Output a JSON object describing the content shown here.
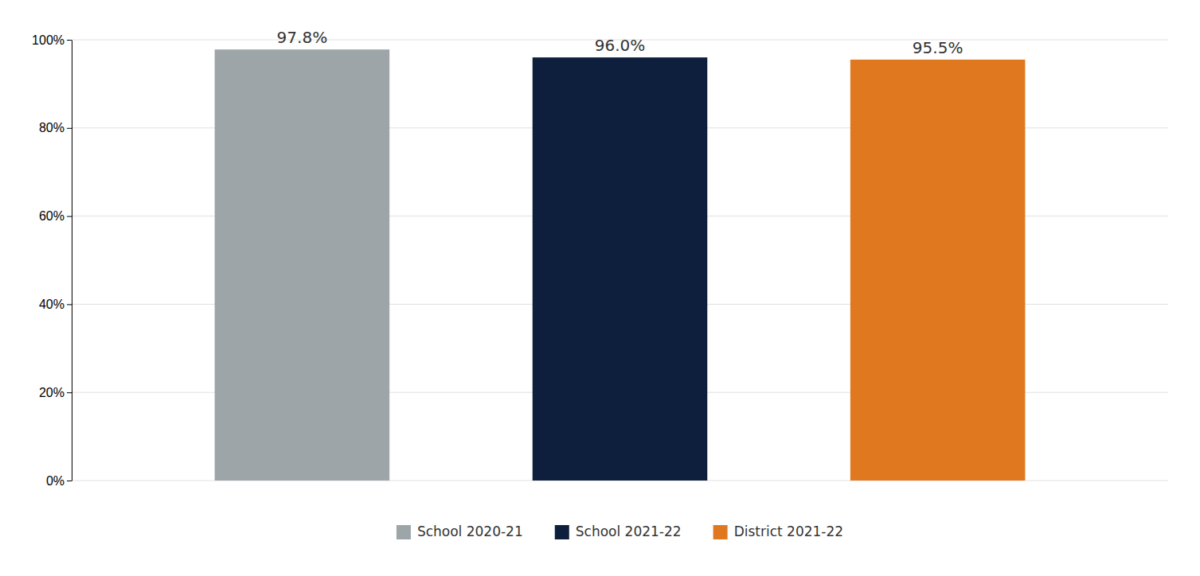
{
  "chart_data": {
    "type": "bar",
    "categories": [
      "School 2020-21",
      "School 2021-22",
      "District 2021-22"
    ],
    "values": [
      97.8,
      96.0,
      95.5
    ],
    "value_labels": [
      "97.8%",
      "96.0%",
      "95.5%"
    ],
    "data_labels": true,
    "colors": [
      "#9DA5A8",
      "#0D1F3C",
      "#E07820"
    ],
    "ylim": [
      0,
      100
    ],
    "yticks": [
      {
        "value": 0,
        "label": "0%"
      },
      {
        "value": 20,
        "label": "20%"
      },
      {
        "value": 40,
        "label": "40%"
      },
      {
        "value": 60,
        "label": "60%"
      },
      {
        "value": 80,
        "label": "80%"
      },
      {
        "value": 100,
        "label": "100%"
      }
    ],
    "grid": true,
    "legend": "bottom",
    "tick_labels": "y"
  }
}
